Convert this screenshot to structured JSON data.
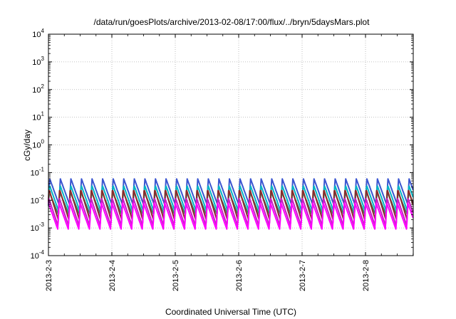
{
  "chart_data": {
    "type": "line",
    "title": "/data/run/goesPlots/archive/2013-02-08/17:00/flux/../bryn/5daysMars.plot",
    "xlabel": "Coordinated Universal Time (UTC)",
    "ylabel": "cGy/day",
    "yscale": "log",
    "ylim": [
      0.0001,
      10000
    ],
    "y_ticks": [
      {
        "base": "10",
        "exp": "-4"
      },
      {
        "base": "10",
        "exp": "-3"
      },
      {
        "base": "10",
        "exp": "-2"
      },
      {
        "base": "10",
        "exp": "-1"
      },
      {
        "base": "10",
        "exp": "0"
      },
      {
        "base": "10",
        "exp": "1"
      },
      {
        "base": "10",
        "exp": "2"
      },
      {
        "base": "10",
        "exp": "3"
      },
      {
        "base": "10",
        "exp": "4"
      }
    ],
    "xlim": [
      "2013-02-03",
      "2013-02-08 18:00"
    ],
    "x_ticks": [
      "2013-2-3",
      "2013-2-4",
      "2013-2-5",
      "2013-2-6",
      "2013-2-7",
      "2013-2-8"
    ],
    "grid": true,
    "oscillation_cycles_per_day": 6,
    "series": [
      {
        "color": "#3a55d0",
        "peak": 0.06,
        "trough": 0.007
      },
      {
        "color": "#00b4c4",
        "peak": 0.035,
        "trough": 0.004
      },
      {
        "color": "#2f8a6f",
        "peak": 0.02,
        "trough": 0.003
      },
      {
        "color": "#8b2a2a",
        "peak": 0.025,
        "trough": 0.002
      },
      {
        "color": "#c81ec8",
        "peak": 0.012,
        "trough": 0.0012
      },
      {
        "color": "#ff00ff",
        "peak": 0.008,
        "trough": 0.0009
      }
    ]
  }
}
